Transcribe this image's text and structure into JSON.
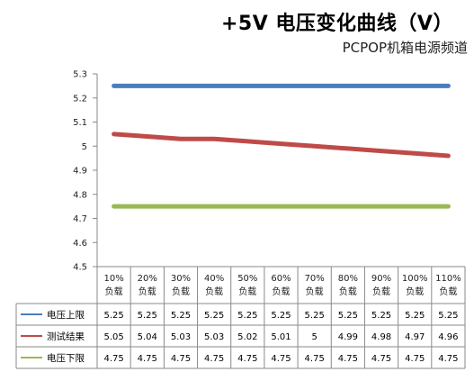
{
  "header": {
    "title": "+5V 电压变化曲线（V）",
    "subtitle": "PCPOP机箱电源频道"
  },
  "colors": {
    "upper": "#4A7EBB",
    "result": "#BE4B48",
    "lower": "#98B954",
    "grid": "#8A8A8A"
  },
  "chart_data": {
    "type": "line",
    "title": "+5V 电压变化曲线（V）",
    "subtitle": "PCPOP机箱电源频道",
    "categories": [
      "10%|负载",
      "20%|负载",
      "30%|负载",
      "40%|负载",
      "50%|负载",
      "60%|负载",
      "70%|负载",
      "80%|负载",
      "90%|负载",
      "100%|负载",
      "110%|负载"
    ],
    "y_ticks": [
      "5.3",
      "5.2",
      "5.1",
      "5",
      "4.9",
      "4.8",
      "4.7",
      "4.6",
      "4.5"
    ],
    "ylim": [
      4.5,
      5.3
    ],
    "legend_position": "bottom-left (data table)",
    "series": [
      {
        "name": "电压上限",
        "color": "#4A7EBB",
        "values": [
          5.25,
          5.25,
          5.25,
          5.25,
          5.25,
          5.25,
          5.25,
          5.25,
          5.25,
          5.25,
          5.25
        ],
        "labels": [
          "5.25",
          "5.25",
          "5.25",
          "5.25",
          "5.25",
          "5.25",
          "5.25",
          "5.25",
          "5.25",
          "5.25",
          "5.25"
        ]
      },
      {
        "name": "测试结果",
        "color": "#BE4B48",
        "values": [
          5.05,
          5.04,
          5.03,
          5.03,
          5.02,
          5.01,
          5,
          4.99,
          4.98,
          4.97,
          4.96
        ],
        "labels": [
          "5.05",
          "5.04",
          "5.03",
          "5.03",
          "5.02",
          "5.01",
          "5",
          "4.99",
          "4.98",
          "4.97",
          "4.96"
        ]
      },
      {
        "name": "电压下限",
        "color": "#98B954",
        "values": [
          4.75,
          4.75,
          4.75,
          4.75,
          4.75,
          4.75,
          4.75,
          4.75,
          4.75,
          4.75,
          4.75
        ],
        "labels": [
          "4.75",
          "4.75",
          "4.75",
          "4.75",
          "4.75",
          "4.75",
          "4.75",
          "4.75",
          "4.75",
          "4.75",
          "4.75"
        ]
      }
    ]
  }
}
